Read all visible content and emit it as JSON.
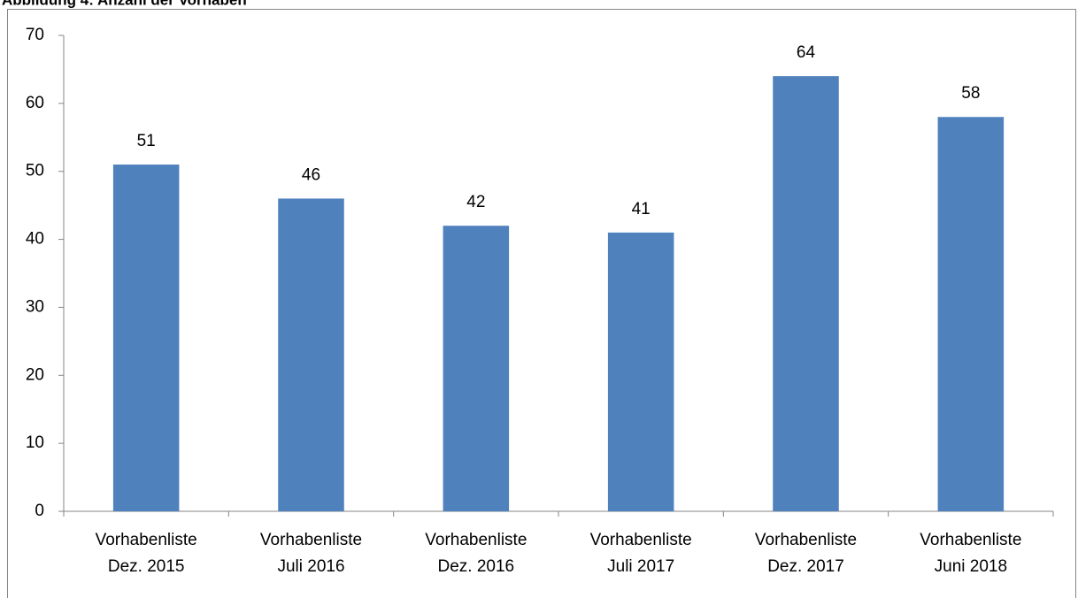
{
  "chart_data": {
    "type": "bar",
    "title": "Abbildung 4: Anzahl der Vorhaben",
    "categories": [
      [
        "Vorhabenliste",
        "Dez. 2015"
      ],
      [
        "Vorhabenliste",
        "Juli 2016"
      ],
      [
        "Vorhabenliste",
        "Dez. 2016"
      ],
      [
        "Vorhabenliste",
        "Juli 2017"
      ],
      [
        "Vorhabenliste",
        "Dez. 2017"
      ],
      [
        "Vorhabenliste",
        "Juni 2018"
      ]
    ],
    "values": [
      51,
      46,
      42,
      41,
      64,
      58
    ],
    "color": "#4f81bd",
    "ylim": [
      0,
      70
    ],
    "yticks": [
      0,
      10,
      20,
      30,
      40,
      50,
      60,
      70
    ],
    "grid": false
  }
}
